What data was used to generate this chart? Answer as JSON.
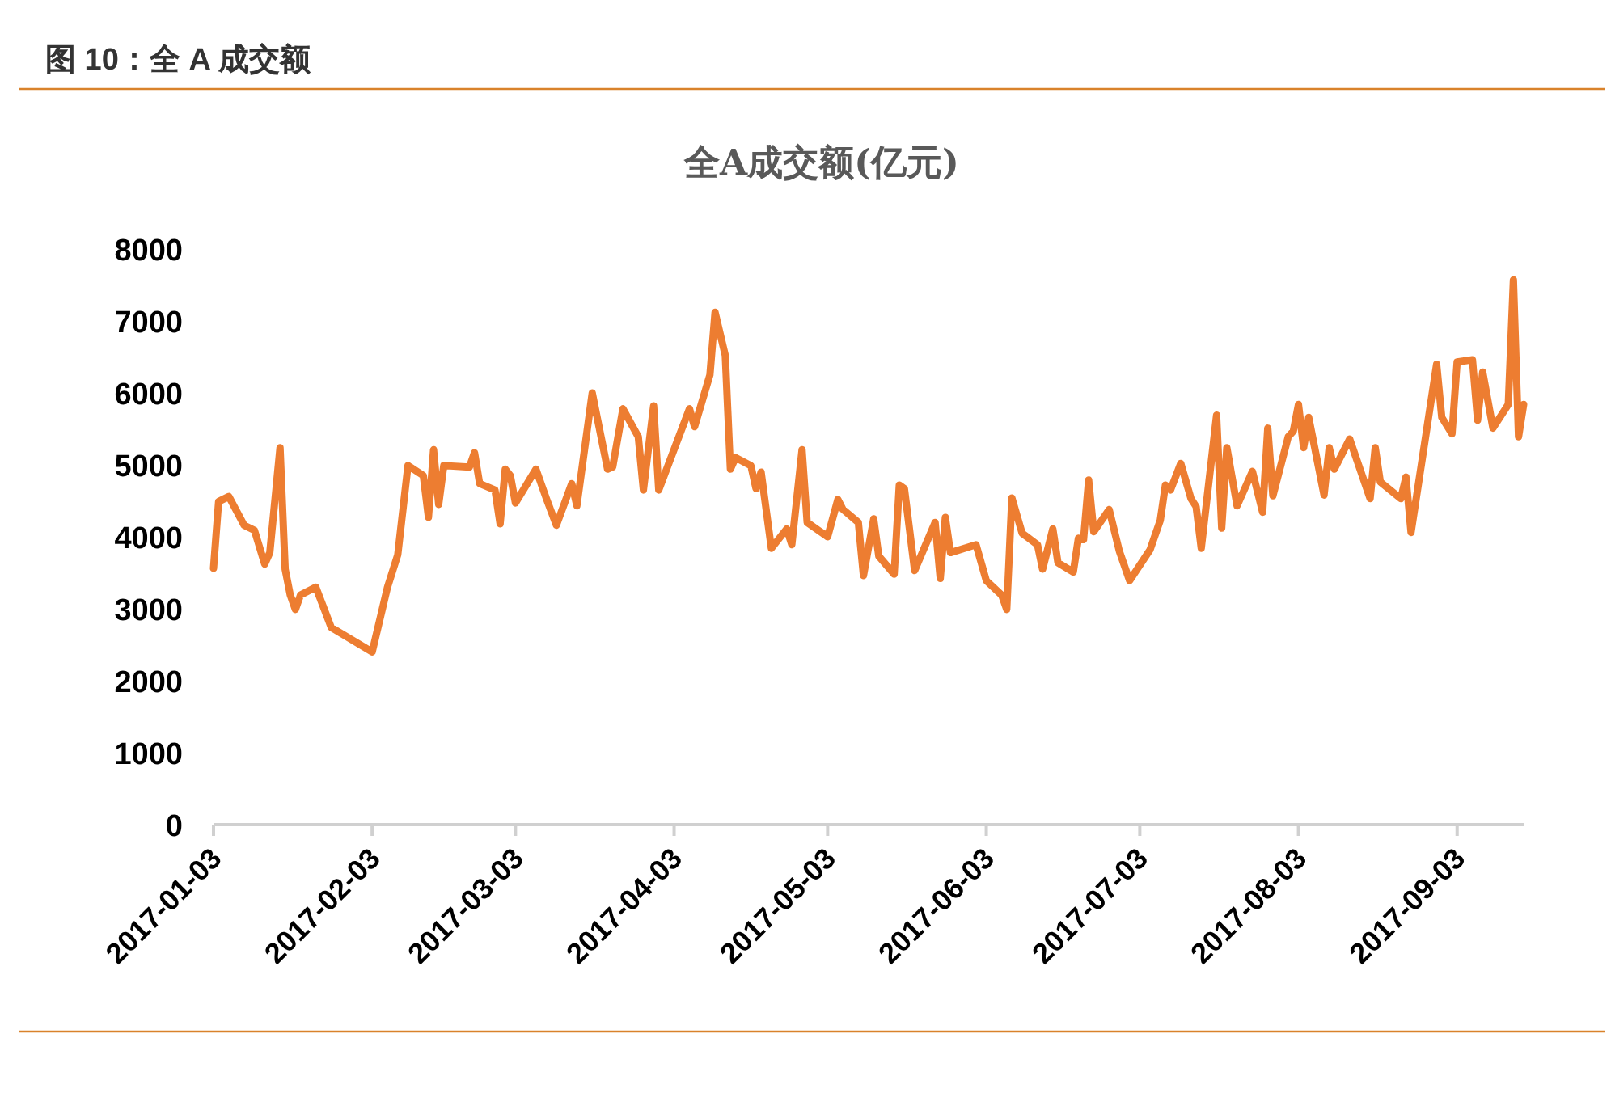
{
  "chart_data": {
    "type": "line",
    "title": "图 10：全 A 成交额",
    "subtitle": "全A成交额(亿元)",
    "color": "#ed7d31",
    "xlim": [
      "2017-01-03",
      "2017-09-16"
    ],
    "xticks": [
      "2017-01-03",
      "2017-02-03",
      "2017-03-03",
      "2017-04-03",
      "2017-05-03",
      "2017-06-03",
      "2017-07-03",
      "2017-08-03",
      "2017-09-03"
    ],
    "ylim": [
      0,
      8000
    ],
    "yticks": [
      0,
      1000,
      2000,
      3000,
      4000,
      5000,
      6000,
      7000,
      8000
    ],
    "x": [
      "2017-01-03",
      "2017-01-04",
      "2017-01-06",
      "2017-01-09",
      "2017-01-11",
      "2017-01-13",
      "2017-01-14",
      "2017-01-16",
      "2017-01-17",
      "2017-01-18",
      "2017-01-19",
      "2017-01-20",
      "2017-01-23",
      "2017-01-26",
      "2017-02-03",
      "2017-02-06",
      "2017-02-08",
      "2017-02-10",
      "2017-02-13",
      "2017-02-14",
      "2017-02-15",
      "2017-02-16",
      "2017-02-17",
      "2017-02-22",
      "2017-02-23",
      "2017-02-24",
      "2017-02-27",
      "2017-02-28",
      "2017-03-01",
      "2017-03-02",
      "2017-03-03",
      "2017-03-07",
      "2017-03-09",
      "2017-03-11",
      "2017-03-14",
      "2017-03-15",
      "2017-03-18",
      "2017-03-21",
      "2017-03-22",
      "2017-03-24",
      "2017-03-27",
      "2017-03-28",
      "2017-03-30",
      "2017-03-31",
      "2017-04-06",
      "2017-04-07",
      "2017-04-10",
      "2017-04-11",
      "2017-04-13",
      "2017-04-14",
      "2017-04-15",
      "2017-04-18",
      "2017-04-19",
      "2017-04-20",
      "2017-04-22",
      "2017-04-25",
      "2017-04-26",
      "2017-04-28",
      "2017-04-29",
      "2017-05-03",
      "2017-05-05",
      "2017-05-06",
      "2017-05-09",
      "2017-05-10",
      "2017-05-12",
      "2017-05-13",
      "2017-05-16",
      "2017-05-17",
      "2017-05-18",
      "2017-05-20",
      "2017-05-24",
      "2017-05-25",
      "2017-05-26",
      "2017-05-27",
      "2017-06-01",
      "2017-06-03",
      "2017-06-06",
      "2017-06-07",
      "2017-06-08",
      "2017-06-10",
      "2017-06-13",
      "2017-06-14",
      "2017-06-16",
      "2017-06-17",
      "2017-06-20",
      "2017-06-21",
      "2017-06-22",
      "2017-06-23",
      "2017-06-24",
      "2017-06-27",
      "2017-06-29",
      "2017-07-01",
      "2017-07-05",
      "2017-07-07",
      "2017-07-08",
      "2017-07-09",
      "2017-07-11",
      "2017-07-13",
      "2017-07-14",
      "2017-07-15",
      "2017-07-18",
      "2017-07-19",
      "2017-07-20",
      "2017-07-22",
      "2017-07-25",
      "2017-07-27",
      "2017-07-28",
      "2017-07-29",
      "2017-08-01",
      "2017-08-02",
      "2017-08-03",
      "2017-08-04",
      "2017-08-05",
      "2017-08-08",
      "2017-08-09",
      "2017-08-10",
      "2017-08-13",
      "2017-08-17",
      "2017-08-18",
      "2017-08-19",
      "2017-08-23",
      "2017-08-24",
      "2017-08-25",
      "2017-08-30",
      "2017-08-31",
      "2017-09-02",
      "2017-09-03",
      "2017-09-06",
      "2017-09-07",
      "2017-09-08",
      "2017-09-10",
      "2017-09-13",
      "2017-09-14",
      "2017-09-15",
      "2017-09-16"
    ],
    "values": [
      3560,
      4490,
      4560,
      4160,
      4090,
      3620,
      3780,
      5240,
      3550,
      3190,
      2990,
      3190,
      3300,
      2740,
      2400,
      3300,
      3750,
      4990,
      4850,
      4270,
      5210,
      4450,
      4990,
      4970,
      5170,
      4740,
      4650,
      4180,
      4940,
      4850,
      4470,
      4940,
      4540,
      4160,
      4740,
      4430,
      6000,
      4940,
      4970,
      5780,
      5390,
      4650,
      5820,
      4650,
      5780,
      5530,
      6250,
      7120,
      6520,
      4940,
      5100,
      4990,
      4670,
      4900,
      3840,
      4110,
      3890,
      5210,
      4200,
      4000,
      4520,
      4380,
      4200,
      3460,
      4250,
      3730,
      3480,
      4720,
      4670,
      3530,
      4200,
      3420,
      4270,
      3780,
      3890,
      3390,
      3190,
      2990,
      4540,
      4050,
      3890,
      3550,
      4110,
      3640,
      3510,
      3980,
      3960,
      4790,
      4070,
      4380,
      3800,
      3390,
      3820,
      4230,
      4720,
      4650,
      5020,
      4530,
      4420,
      3840,
      5690,
      4120,
      5240,
      4430,
      4910,
      4340,
      5510,
      4570,
      5390,
      5470,
      5840,
      5240,
      5660,
      4580,
      5240,
      4940,
      5360,
      4530,
      5240,
      4760,
      4530,
      4830,
      4060,
      6400,
      5660,
      5430,
      6430,
      6460,
      5620,
      6290,
      5510,
      5840,
      7570,
      5390,
      5840
    ]
  }
}
